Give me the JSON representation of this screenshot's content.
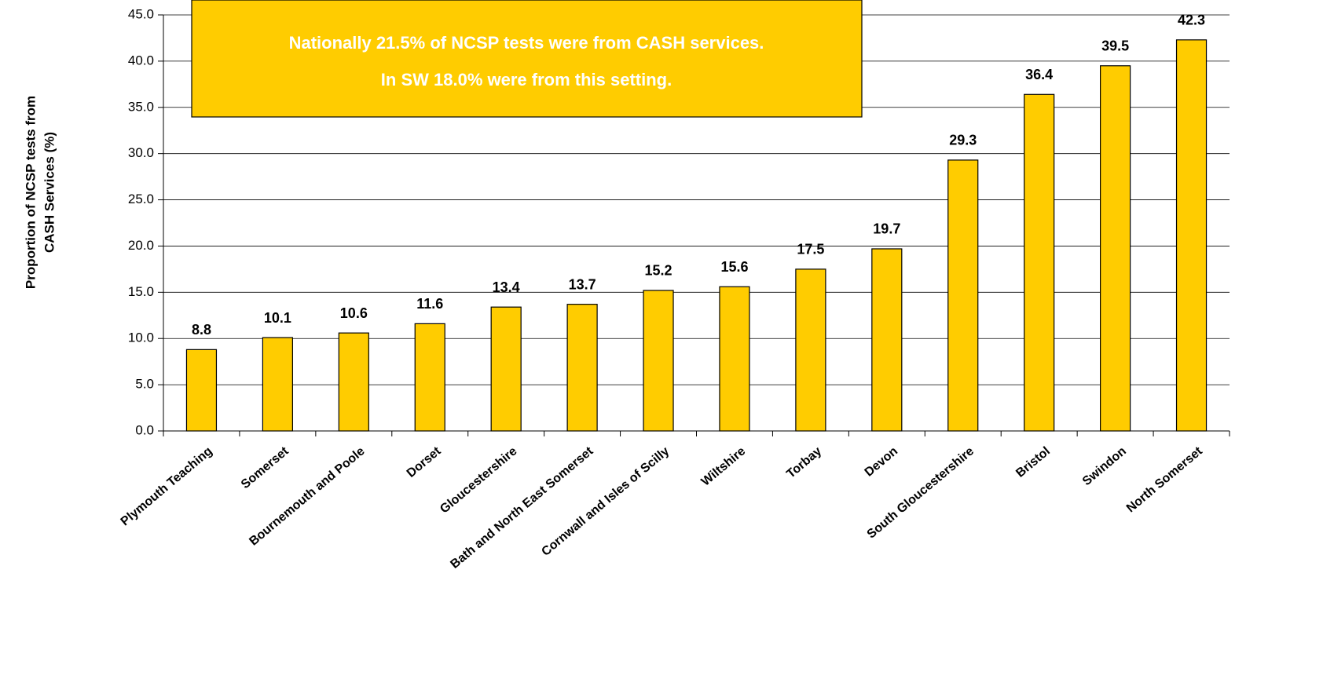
{
  "chart_data": {
    "type": "bar",
    "ylabel": [
      "Proportion of NCSP tests from",
      "CASH Services (%)"
    ],
    "annotation": [
      "Nationally 21.5% of NCSP tests were from CASH services.",
      "In SW 18.0% were from this setting."
    ],
    "categories": [
      "Plymouth Teaching",
      "Somerset",
      "Bournemouth and Poole",
      "Dorset",
      "Gloucestershire",
      "Bath and North East Somerset",
      "Cornwall and Isles of Scilly",
      "Wiltshire",
      "Torbay",
      "Devon",
      "South Gloucestershire",
      "Bristol",
      "Swindon",
      "North Somerset"
    ],
    "values": [
      8.8,
      10.1,
      10.6,
      11.6,
      13.4,
      13.7,
      15.2,
      15.6,
      17.5,
      19.7,
      29.3,
      36.4,
      39.5,
      42.3
    ],
    "color": "#FFCC00",
    "ylim": [
      0,
      45
    ],
    "yticks": [
      {
        "value": 0,
        "label": "0.0"
      },
      {
        "value": 5,
        "label": "5.0"
      },
      {
        "value": 10,
        "label": "10.0"
      },
      {
        "value": 15,
        "label": "15.0"
      },
      {
        "value": 20,
        "label": "20.0"
      },
      {
        "value": 25,
        "label": "25.0"
      },
      {
        "value": 30,
        "label": "30.0"
      },
      {
        "value": 35,
        "label": "35.0"
      },
      {
        "value": 40,
        "label": "40.0"
      },
      {
        "value": 45,
        "label": "45.0"
      }
    ],
    "grid": true
  }
}
